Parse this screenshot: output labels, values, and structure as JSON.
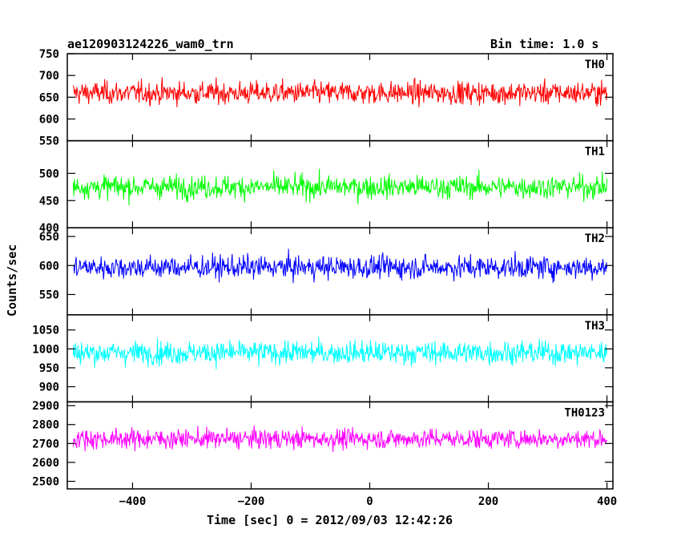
{
  "header": {
    "title": "ae120903124226_wam0_trn",
    "bin_time": "Bin time: 1.0 s"
  },
  "chart_data": {
    "type": "line",
    "title": "ae120903124226_wam0_trn",
    "xlabel": "Time [sec] 0 = 2012/09/03 12:42:26",
    "ylabel": "Counts/sec",
    "xlim": [
      -510,
      410
    ],
    "x_ticks": [
      -400,
      -200,
      0,
      200,
      400
    ],
    "x_range": [
      -500,
      400
    ],
    "bin_time_s": 1.0,
    "grid": false,
    "series": [
      {
        "name": "TH0",
        "color": "#ff0000",
        "mean": 660,
        "spread": 55,
        "ylim": [
          550,
          750
        ],
        "y_ticks": [
          550,
          600,
          650,
          700,
          750
        ]
      },
      {
        "name": "TH1",
        "color": "#00ff00",
        "mean": 475,
        "spread": 45,
        "ylim": [
          400,
          560
        ],
        "y_ticks": [
          400,
          450,
          500
        ]
      },
      {
        "name": "TH2",
        "color": "#0000ff",
        "mean": 597,
        "spread": 42,
        "ylim": [
          515,
          665
        ],
        "y_ticks": [
          550,
          600,
          650
        ]
      },
      {
        "name": "TH3",
        "color": "#00ffff",
        "mean": 990,
        "spread": 65,
        "ylim": [
          860,
          1090
        ],
        "y_ticks": [
          900,
          950,
          1000,
          1050
        ]
      },
      {
        "name": "TH0123",
        "color": "#ff00ff",
        "mean": 2725,
        "spread": 110,
        "ylim": [
          2460,
          2920
        ],
        "y_ticks": [
          2500,
          2600,
          2700,
          2800,
          2900
        ]
      }
    ]
  }
}
